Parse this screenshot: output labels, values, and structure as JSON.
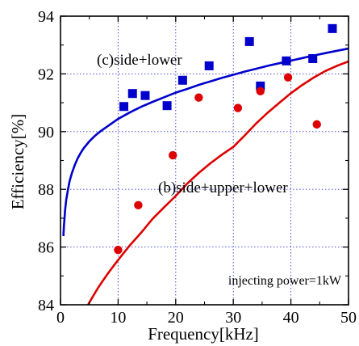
{
  "chart_data": {
    "type": "scatter",
    "xlabel": "Frequency[kHz]",
    "ylabel": "Efficiency[%]",
    "xlim": [
      0,
      50
    ],
    "ylim": [
      84,
      94
    ],
    "x_ticks": [
      0,
      10,
      20,
      30,
      40,
      50
    ],
    "y_ticks": [
      84,
      86,
      88,
      90,
      92,
      94
    ],
    "x_tick_labels": [
      "0",
      "10",
      "20",
      "30",
      "40",
      "50"
    ],
    "y_tick_labels": [
      "84",
      "86",
      "88",
      "90",
      "92",
      "94"
    ],
    "grid": true,
    "annotation": "injecting power=1kW",
    "series": [
      {
        "name": "(c)side+lower",
        "marker": "square",
        "color": "#0000cc",
        "points": [
          [
            11,
            90.87
          ],
          [
            12.5,
            91.32
          ],
          [
            14.7,
            91.25
          ],
          [
            18.5,
            90.9
          ],
          [
            21.2,
            91.78
          ],
          [
            25.8,
            92.28
          ],
          [
            32.8,
            93.12
          ],
          [
            34.7,
            91.58
          ],
          [
            39.2,
            92.45
          ],
          [
            43.8,
            92.53
          ],
          [
            47.2,
            93.57
          ]
        ],
        "fit_curve": [
          [
            0.5,
            86.38
          ],
          [
            0.6,
            86.75
          ],
          [
            0.8,
            87.28
          ],
          [
            1,
            87.64
          ],
          [
            1.3,
            88.0
          ],
          [
            1.6,
            88.3
          ],
          [
            2,
            88.58
          ],
          [
            2.5,
            88.85
          ],
          [
            3,
            89.08
          ],
          [
            3.5,
            89.26
          ],
          [
            4,
            89.42
          ],
          [
            5,
            89.66
          ],
          [
            6,
            89.86
          ],
          [
            7,
            90.02
          ],
          [
            8,
            90.16
          ],
          [
            10,
            90.44
          ],
          [
            12,
            90.66
          ],
          [
            14,
            90.86
          ],
          [
            16,
            91.03
          ],
          [
            18,
            91.19
          ],
          [
            20,
            91.35
          ],
          [
            22,
            91.48
          ],
          [
            24,
            91.62
          ],
          [
            26,
            91.74
          ],
          [
            28,
            91.86
          ],
          [
            30,
            91.97
          ],
          [
            32,
            92.08
          ],
          [
            34,
            92.18
          ],
          [
            36,
            92.28
          ],
          [
            38,
            92.37
          ],
          [
            40,
            92.46
          ],
          [
            42,
            92.55
          ],
          [
            44,
            92.64
          ],
          [
            46,
            92.72
          ],
          [
            48,
            92.8
          ],
          [
            50,
            92.88
          ]
        ]
      },
      {
        "name": "(b)side+upper+lower",
        "marker": "circle",
        "color": "#dd0000",
        "points": [
          [
            10,
            85.9
          ],
          [
            13.5,
            87.45
          ],
          [
            19.5,
            89.18
          ],
          [
            24,
            91.18
          ],
          [
            30.8,
            90.82
          ],
          [
            34.7,
            91.4
          ],
          [
            39.5,
            91.88
          ],
          [
            44.5,
            90.25
          ]
        ],
        "fit_curve": [
          [
            4.5,
            83.9
          ],
          [
            5.5,
            84.25
          ],
          [
            6.5,
            84.58
          ],
          [
            7.5,
            84.88
          ],
          [
            8.5,
            85.16
          ],
          [
            9.5,
            85.42
          ],
          [
            10.5,
            85.68
          ],
          [
            12,
            86.05
          ],
          [
            14,
            86.5
          ],
          [
            16,
            86.98
          ],
          [
            18,
            87.38
          ],
          [
            20,
            87.77
          ],
          [
            22,
            88.2
          ],
          [
            24,
            88.57
          ],
          [
            26,
            88.9
          ],
          [
            28,
            89.2
          ],
          [
            30,
            89.47
          ],
          [
            32,
            89.87
          ],
          [
            34,
            90.29
          ],
          [
            36,
            90.66
          ],
          [
            38,
            91.0
          ],
          [
            40,
            91.33
          ],
          [
            42,
            91.62
          ],
          [
            44,
            91.88
          ],
          [
            46,
            92.1
          ],
          [
            48,
            92.28
          ],
          [
            50,
            92.43
          ]
        ]
      }
    ]
  }
}
